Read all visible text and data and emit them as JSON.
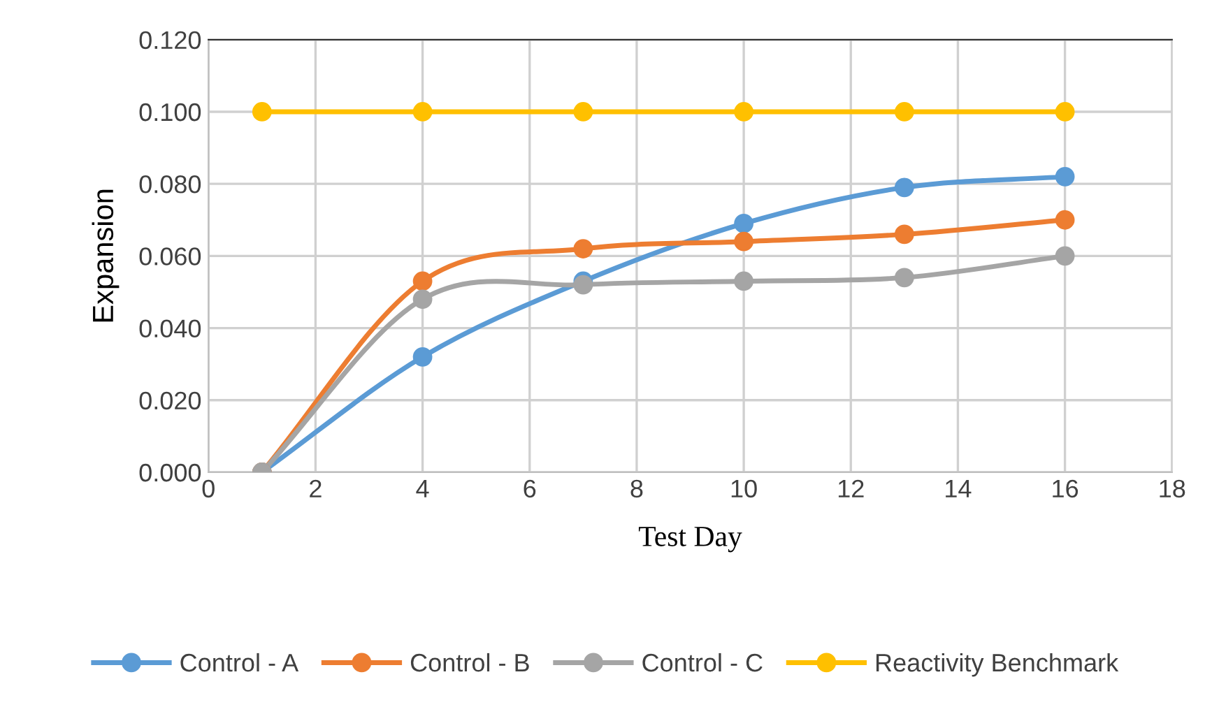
{
  "chart_data": {
    "type": "line",
    "xlabel": "Test Day",
    "ylabel": "Expansion",
    "x": [
      1,
      4,
      7,
      10,
      13,
      16
    ],
    "series": [
      {
        "name": "Control - A",
        "color": "#5b9bd5",
        "values": [
          0.0,
          0.032,
          0.053,
          0.069,
          0.079,
          0.082
        ]
      },
      {
        "name": "Control - B",
        "color": "#ed7d31",
        "values": [
          0.0,
          0.053,
          0.062,
          0.064,
          0.066,
          0.07
        ]
      },
      {
        "name": "Control - C",
        "color": "#a5a5a5",
        "values": [
          0.0,
          0.048,
          0.052,
          0.053,
          0.054,
          0.06
        ]
      },
      {
        "name": "Reactivity Benchmark",
        "color": "#ffc000",
        "values": [
          0.1,
          0.1,
          0.1,
          0.1,
          0.1,
          0.1
        ]
      }
    ],
    "xlim": [
      0,
      18
    ],
    "xticks": [
      0,
      2,
      4,
      6,
      8,
      10,
      12,
      14,
      16,
      18
    ],
    "ylim": [
      0,
      0.12
    ],
    "yticks": [
      {
        "value": 0,
        "label": "0.000"
      },
      {
        "value": 0.02,
        "label": "0.020"
      },
      {
        "value": 0.04,
        "label": "0.040"
      },
      {
        "value": 0.06,
        "label": "0.060"
      },
      {
        "value": 0.08,
        "label": "0.080"
      },
      {
        "value": 0.1,
        "label": "0.100"
      },
      {
        "value": 0.12,
        "label": "0.120"
      }
    ],
    "grid": true,
    "legend": "bottom",
    "marker": "circle",
    "line_style": "solid"
  }
}
